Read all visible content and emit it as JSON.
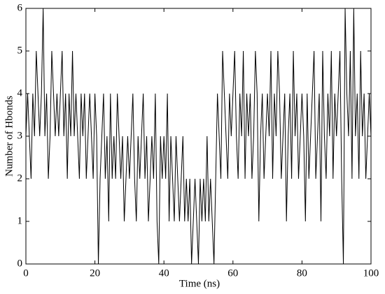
{
  "chart_data": {
    "type": "line",
    "xlabel": "Time (ns)",
    "ylabel": "Number of Hbonds",
    "xlim": [
      0,
      100
    ],
    "xticks": [
      0,
      20,
      40,
      60,
      80,
      100
    ],
    "ylim": [
      0,
      6
    ],
    "yticks": [
      0,
      1,
      2,
      3,
      4,
      5,
      6
    ],
    "series": [
      {
        "color": "#000000",
        "x": [
          0,
          0.5,
          1,
          1.5,
          2,
          2.5,
          3,
          3.5,
          4,
          4.5,
          5,
          5.5,
          6,
          6.5,
          7,
          7.5,
          8,
          8.5,
          9,
          9.5,
          10,
          10.5,
          11,
          11.5,
          12,
          12.5,
          13,
          13.5,
          14,
          14.5,
          15,
          15.5,
          16,
          16.5,
          17,
          17.5,
          18,
          18.5,
          19,
          19.5,
          20,
          20.5,
          21,
          21.5,
          22,
          22.5,
          23,
          23.5,
          24,
          24.5,
          25,
          25.5,
          26,
          26.5,
          27,
          27.5,
          28,
          28.5,
          29,
          29.5,
          30,
          30.5,
          31,
          31.5,
          32,
          32.5,
          33,
          33.5,
          34,
          34.5,
          35,
          35.5,
          36,
          36.5,
          37,
          37.5,
          38,
          38.5,
          39,
          39.5,
          40,
          40.5,
          41,
          41.5,
          42,
          42.5,
          43,
          43.5,
          44,
          44.5,
          45,
          45.5,
          46,
          46.5,
          47,
          47.5,
          48,
          48.5,
          49,
          49.5,
          50,
          50.5,
          51,
          51.5,
          52,
          52.5,
          53,
          53.5,
          54,
          54.5,
          55,
          55.5,
          56,
          56.5,
          57,
          57.5,
          58,
          58.5,
          59,
          59.5,
          60,
          60.5,
          61,
          61.5,
          62,
          62.5,
          63,
          63.5,
          64,
          64.5,
          65,
          65.5,
          66,
          66.5,
          67,
          67.5,
          68,
          68.5,
          69,
          69.5,
          70,
          70.5,
          71,
          71.5,
          72,
          72.5,
          73,
          73.5,
          74,
          74.5,
          75,
          75.5,
          76,
          76.5,
          77,
          77.5,
          78,
          78.5,
          79,
          79.5,
          80,
          80.5,
          81,
          81.5,
          82,
          82.5,
          83,
          83.5,
          84,
          84.5,
          85,
          85.5,
          86,
          86.5,
          87,
          87.5,
          88,
          88.5,
          89,
          89.5,
          90,
          90.5,
          91,
          91.5,
          92,
          92.5,
          93,
          93.5,
          94,
          94.5,
          95,
          95.5,
          96,
          96.5,
          97,
          97.5,
          98,
          98.5,
          99,
          99.5,
          100
        ],
        "values": [
          3,
          4,
          3,
          2,
          4,
          3,
          5,
          4,
          3,
          4,
          6,
          3,
          4,
          2,
          3,
          5,
          4,
          3,
          4,
          3,
          4,
          5,
          3,
          4,
          2,
          4,
          3,
          5,
          3,
          4,
          3,
          2,
          4,
          3,
          4,
          2,
          3,
          4,
          3,
          2,
          4,
          3,
          0,
          2,
          3,
          4,
          2,
          3,
          1,
          4,
          2,
          3,
          2,
          4,
          3,
          2,
          3,
          1,
          2,
          3,
          2,
          3,
          4,
          2,
          1,
          3,
          2,
          3,
          4,
          2,
          3,
          1,
          2,
          3,
          2,
          4,
          1,
          0,
          3,
          2,
          3,
          2,
          4,
          1,
          3,
          2,
          1,
          3,
          2,
          1,
          2,
          3,
          1,
          2,
          1,
          2,
          0,
          1,
          2,
          1,
          0,
          2,
          1,
          2,
          1,
          3,
          1,
          2,
          1,
          0,
          2,
          4,
          3,
          2,
          5,
          4,
          3,
          2,
          4,
          3,
          4,
          5,
          3,
          2,
          4,
          3,
          5,
          2,
          4,
          3,
          4,
          2,
          3,
          5,
          4,
          1,
          3,
          4,
          2,
          3,
          4,
          3,
          5,
          2,
          4,
          3,
          5,
          4,
          2,
          3,
          4,
          1,
          3,
          4,
          2,
          5,
          3,
          4,
          2,
          3,
          4,
          3,
          1,
          4,
          2,
          3,
          4,
          5,
          2,
          3,
          4,
          1,
          5,
          3,
          2,
          4,
          3,
          5,
          2,
          4,
          3,
          4,
          5,
          2,
          0,
          6,
          4,
          3,
          5,
          2,
          6,
          3,
          4,
          2,
          5,
          3,
          4,
          2,
          3,
          4,
          3
        ]
      }
    ]
  }
}
